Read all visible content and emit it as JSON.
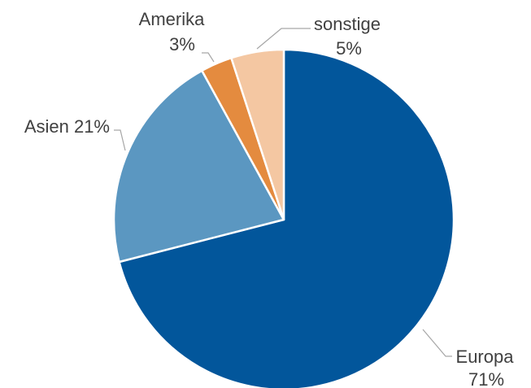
{
  "chart_data": {
    "type": "pie",
    "start": "12 o'clock, clockwise",
    "slices": [
      {
        "label": "Europa",
        "value": 71,
        "value_label": "71%",
        "color": "#02569b"
      },
      {
        "label": "Asien",
        "value": 21,
        "value_label": "21%",
        "color": "#5b97c1"
      },
      {
        "label": "Amerika",
        "value": 3,
        "value_label": "3%",
        "color": "#e48b3f"
      },
      {
        "label": "sonstige",
        "value": 5,
        "value_label": "5%",
        "color": "#f4c7a2"
      }
    ]
  }
}
